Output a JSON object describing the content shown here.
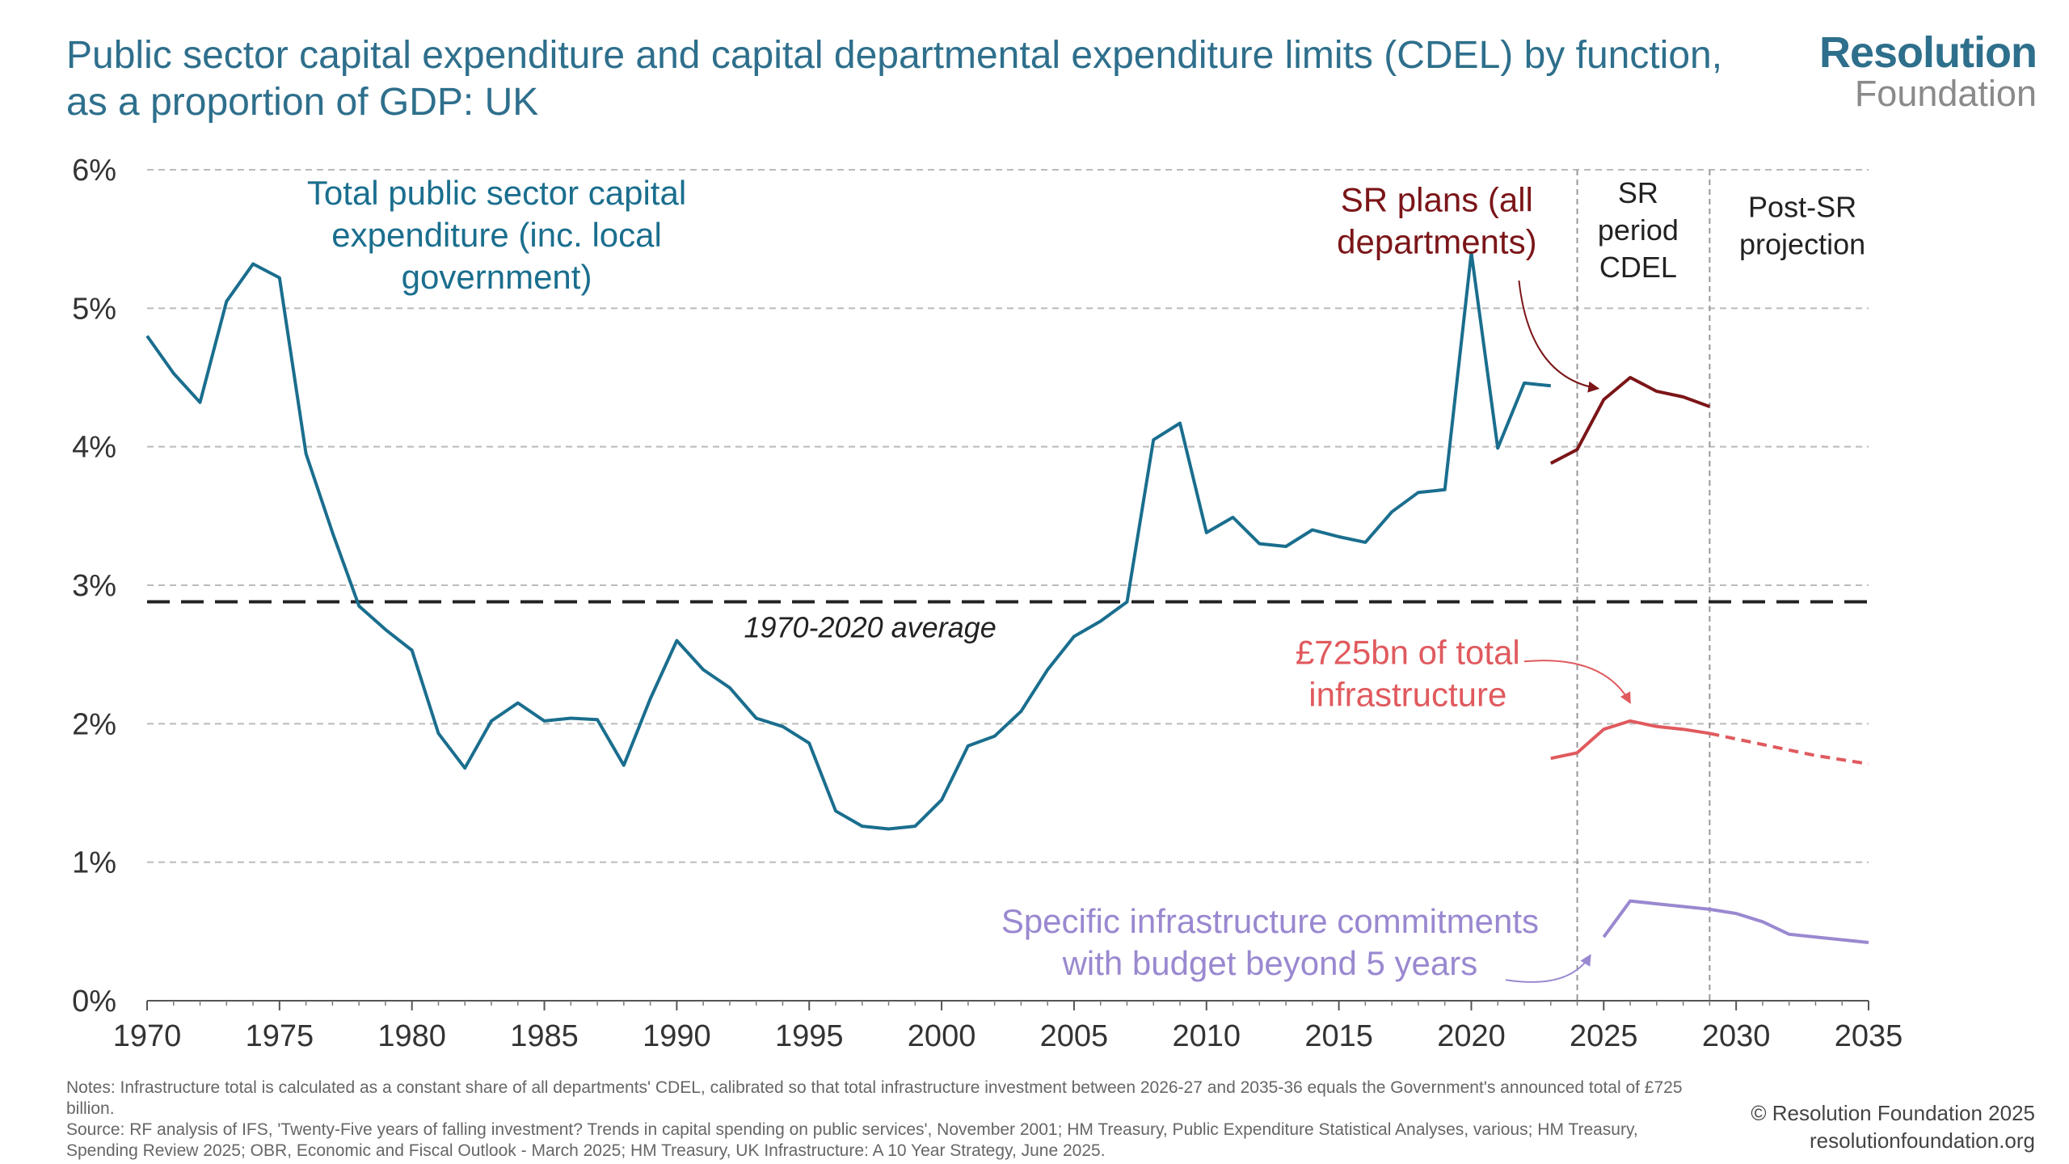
{
  "header": {
    "title": "Public sector capital expenditure and capital departmental expenditure limits (CDEL) by function, as a proportion of GDP: UK",
    "logo_line1": "Resolution",
    "logo_line2": "Foundation"
  },
  "footer": {
    "notes": "Notes: Infrastructure total is calculated as a constant share of all departments' CDEL, calibrated so that total infrastructure investment between 2026-27 and 2035-36 equals the Government's announced total of £725 billion.",
    "source": "Source: RF analysis of IFS, 'Twenty-Five years of falling investment? Trends in capital spending on public services', November 2001; HM Treasury, Public Expenditure Statistical Analyses, various; HM Treasury, Spending Review 2025; OBR, Economic and Fiscal Outlook - March 2025; HM Treasury, UK Infrastructure: A 10 Year Strategy, June 2025.",
    "copyright": "© Resolution Foundation 2025",
    "website": "resolutionfoundation.org"
  },
  "chart_data": {
    "type": "line",
    "xlim": [
      1970,
      2035
    ],
    "ylim": [
      0,
      6
    ],
    "x_ticks": [
      1970,
      1975,
      1980,
      1985,
      1990,
      1995,
      2000,
      2005,
      2010,
      2015,
      2020,
      2025,
      2030,
      2035
    ],
    "x_tick_labels": [
      "1970",
      "1975",
      "1980",
      "1985",
      "1990",
      "1995",
      "2000",
      "2005",
      "2010",
      "2015",
      "2020",
      "2025",
      "2030",
      "2035"
    ],
    "y_ticks": [
      0,
      1,
      2,
      3,
      4,
      5,
      6
    ],
    "y_tick_labels": [
      "0%",
      "1%",
      "2%",
      "3%",
      "4%",
      "5%",
      "6%"
    ],
    "grid": "horizontal dashed",
    "colors": {
      "total": "#1a6e8e",
      "sr_plans": "#7b1518",
      "infrastructure": "#e05a5e",
      "commitments": "#9a88d0",
      "average": "#222222",
      "grid": "#bbbbbb",
      "period_lines": "#999999",
      "axis_text": "#333333"
    },
    "period_lines": [
      2024,
      2029
    ],
    "average": {
      "value": 2.88,
      "label": "1970-2020 average"
    },
    "period_labels": [
      "SR period CDEL",
      "Post-SR projection"
    ],
    "series": [
      {
        "name": "Total public sector capital expenditure (inc. local government)",
        "x": [
          1970,
          1971,
          1972,
          1973,
          1974,
          1975,
          1976,
          1977,
          1978,
          1979,
          1980,
          1981,
          1982,
          1983,
          1984,
          1985,
          1986,
          1987,
          1988,
          1989,
          1990,
          1991,
          1992,
          1993,
          1994,
          1995,
          1996,
          1997,
          1998,
          1999,
          2000,
          2001,
          2002,
          2003,
          2004,
          2005,
          2006,
          2007,
          2008,
          2009,
          2010,
          2011,
          2012,
          2013,
          2014,
          2015,
          2016,
          2017,
          2018,
          2019,
          2020,
          2021,
          2022,
          2023
        ],
        "values": [
          4.8,
          4.53,
          4.32,
          5.05,
          5.32,
          5.22,
          3.95,
          3.38,
          2.85,
          2.68,
          2.53,
          1.93,
          1.68,
          2.02,
          2.15,
          2.02,
          2.04,
          2.03,
          1.7,
          2.18,
          2.6,
          2.39,
          2.26,
          2.04,
          1.98,
          1.86,
          1.37,
          1.26,
          1.24,
          1.26,
          1.45,
          1.84,
          1.91,
          2.09,
          2.39,
          2.63,
          2.74,
          2.88,
          4.05,
          4.17,
          3.38,
          3.49,
          3.3,
          3.28,
          3.4,
          3.35,
          3.31,
          3.53,
          3.67,
          3.69,
          5.4,
          3.99,
          4.46,
          4.44
        ]
      },
      {
        "name": "SR plans (all departments)",
        "x": [
          2023,
          2024,
          2025,
          2026,
          2027,
          2028,
          2029
        ],
        "values": [
          3.88,
          3.98,
          4.34,
          4.5,
          4.4,
          4.36,
          4.29
        ]
      },
      {
        "name": "£725bn of total infrastructure",
        "x": [
          2023,
          2024,
          2025,
          2026,
          2027,
          2028,
          2029
        ],
        "values": [
          1.75,
          1.79,
          1.96,
          2.02,
          1.98,
          1.96,
          1.93
        ],
        "projection": {
          "x": [
            2029,
            2030,
            2031,
            2032,
            2033,
            2034,
            2035
          ],
          "values": [
            1.93,
            1.89,
            1.85,
            1.81,
            1.77,
            1.74,
            1.71
          ]
        }
      },
      {
        "name": "Specific infrastructure commitments with budget beyond 5 years",
        "x": [
          2025,
          2026,
          2027,
          2028,
          2029,
          2030,
          2031,
          2032,
          2033,
          2034,
          2035
        ],
        "values": [
          0.46,
          0.72,
          0.7,
          0.68,
          0.66,
          0.63,
          0.57,
          0.48,
          0.46,
          0.44,
          0.42
        ]
      }
    ],
    "annotations": {
      "total_lines": [
        "Total public sector capital",
        "expenditure (inc. local",
        "government)"
      ],
      "sr_plans_lines": [
        "SR plans (all",
        "departments)"
      ],
      "infrastructure_lines": [
        "£725bn of total",
        "infrastructure"
      ],
      "commitments_lines": [
        "Specific infrastructure commitments",
        "with budget beyond 5 years"
      ],
      "sr_period_lines": [
        "SR",
        "period",
        "CDEL"
      ],
      "post_sr_lines": [
        "Post-SR",
        "projection"
      ]
    }
  }
}
